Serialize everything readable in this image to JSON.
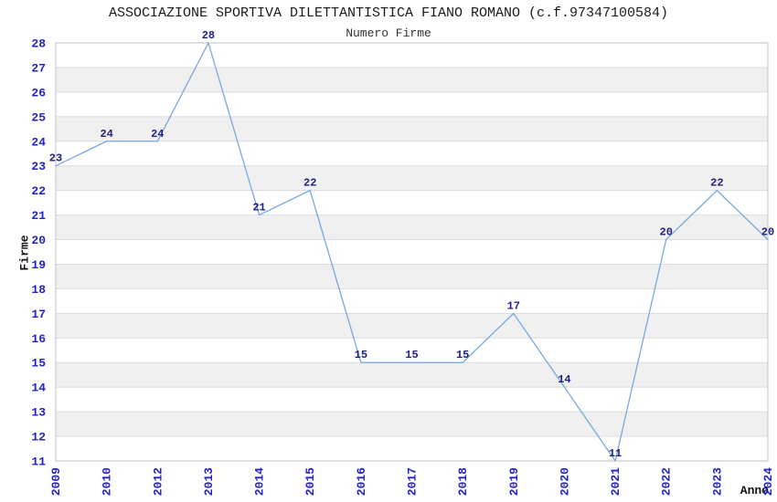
{
  "chart_data": {
    "type": "line",
    "title": "ASSOCIAZIONE SPORTIVA DILETTANTISTICA FIANO ROMANO (c.f.97347100584)",
    "subtitle": "Numero Firme",
    "xlabel": "Anno",
    "ylabel": "Firme",
    "categories": [
      "2009",
      "2010",
      "2012",
      "2013",
      "2014",
      "2015",
      "2016",
      "2017",
      "2018",
      "2019",
      "2020",
      "2021",
      "2022",
      "2023",
      "2024"
    ],
    "values": [
      23,
      24,
      24,
      28,
      21,
      22,
      15,
      15,
      15,
      17,
      14,
      11,
      20,
      22,
      20
    ],
    "ylim": [
      11,
      28
    ],
    "ytick_step": 1,
    "grid": true,
    "banded_rows": true,
    "data_labels": true,
    "legend_position": "none",
    "markers": "none",
    "colors": {
      "line": "#76a9e0",
      "tick_label": "#2222cc",
      "data_label": "#1f1f7e",
      "band_gray": "#f0f0f0",
      "band_white": "#ffffff",
      "gridline": "#dcdcdc",
      "plot_border": "#c0c0c0",
      "title_text": "#1a1a1a",
      "axis_title_text": "#111111"
    }
  }
}
